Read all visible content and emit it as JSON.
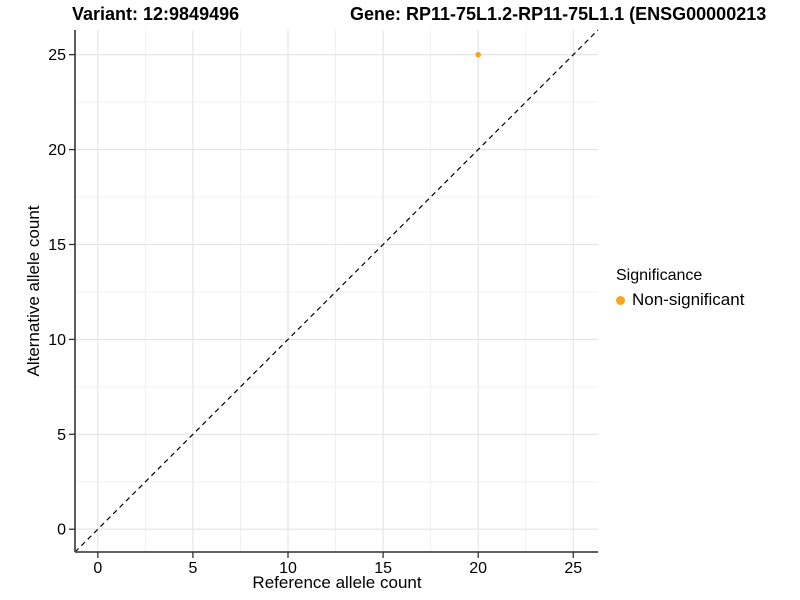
{
  "chart_data": {
    "type": "scatter",
    "title_variant": "Variant: 12:9849496",
    "title_gene": "Gene: RP11-75L1.2-RP11-75L1.1 (ENSG00000213",
    "xlabel": "Reference allele count",
    "ylabel": "Alternative allele count",
    "xlim": [
      -1.2,
      26.3
    ],
    "ylim": [
      -1.2,
      26.3
    ],
    "x_ticks": [
      0,
      5,
      10,
      15,
      20,
      25
    ],
    "y_ticks": [
      0,
      5,
      10,
      15,
      20,
      25
    ],
    "x_minor_ticks": [
      2.5,
      7.5,
      12.5,
      17.5,
      22.5
    ],
    "y_minor_ticks": [
      2.5,
      7.5,
      12.5,
      17.5,
      22.5
    ],
    "grid": "major+minor",
    "identity_line": {
      "from": [
        -1.2,
        -1.2
      ],
      "to": [
        26.3,
        26.3
      ],
      "style": "dashed",
      "color": "#000000"
    },
    "series": [
      {
        "name": "Non-significant",
        "color": "#FAA21B",
        "points": [
          {
            "x": 20,
            "y": 25
          }
        ]
      }
    ],
    "legend": {
      "position": "right",
      "title": "Significance",
      "items": [
        {
          "label": "Non-significant",
          "color": "#FAA21B"
        }
      ]
    },
    "colors": {
      "background": "#FFFFFF",
      "grid_major": "#E3E3E3",
      "grid_minor": "#F0F0F0",
      "axis_line": "#4B4B4B",
      "tick_mark": "#333333",
      "text": "#000000",
      "point": "#FAA21B"
    }
  }
}
